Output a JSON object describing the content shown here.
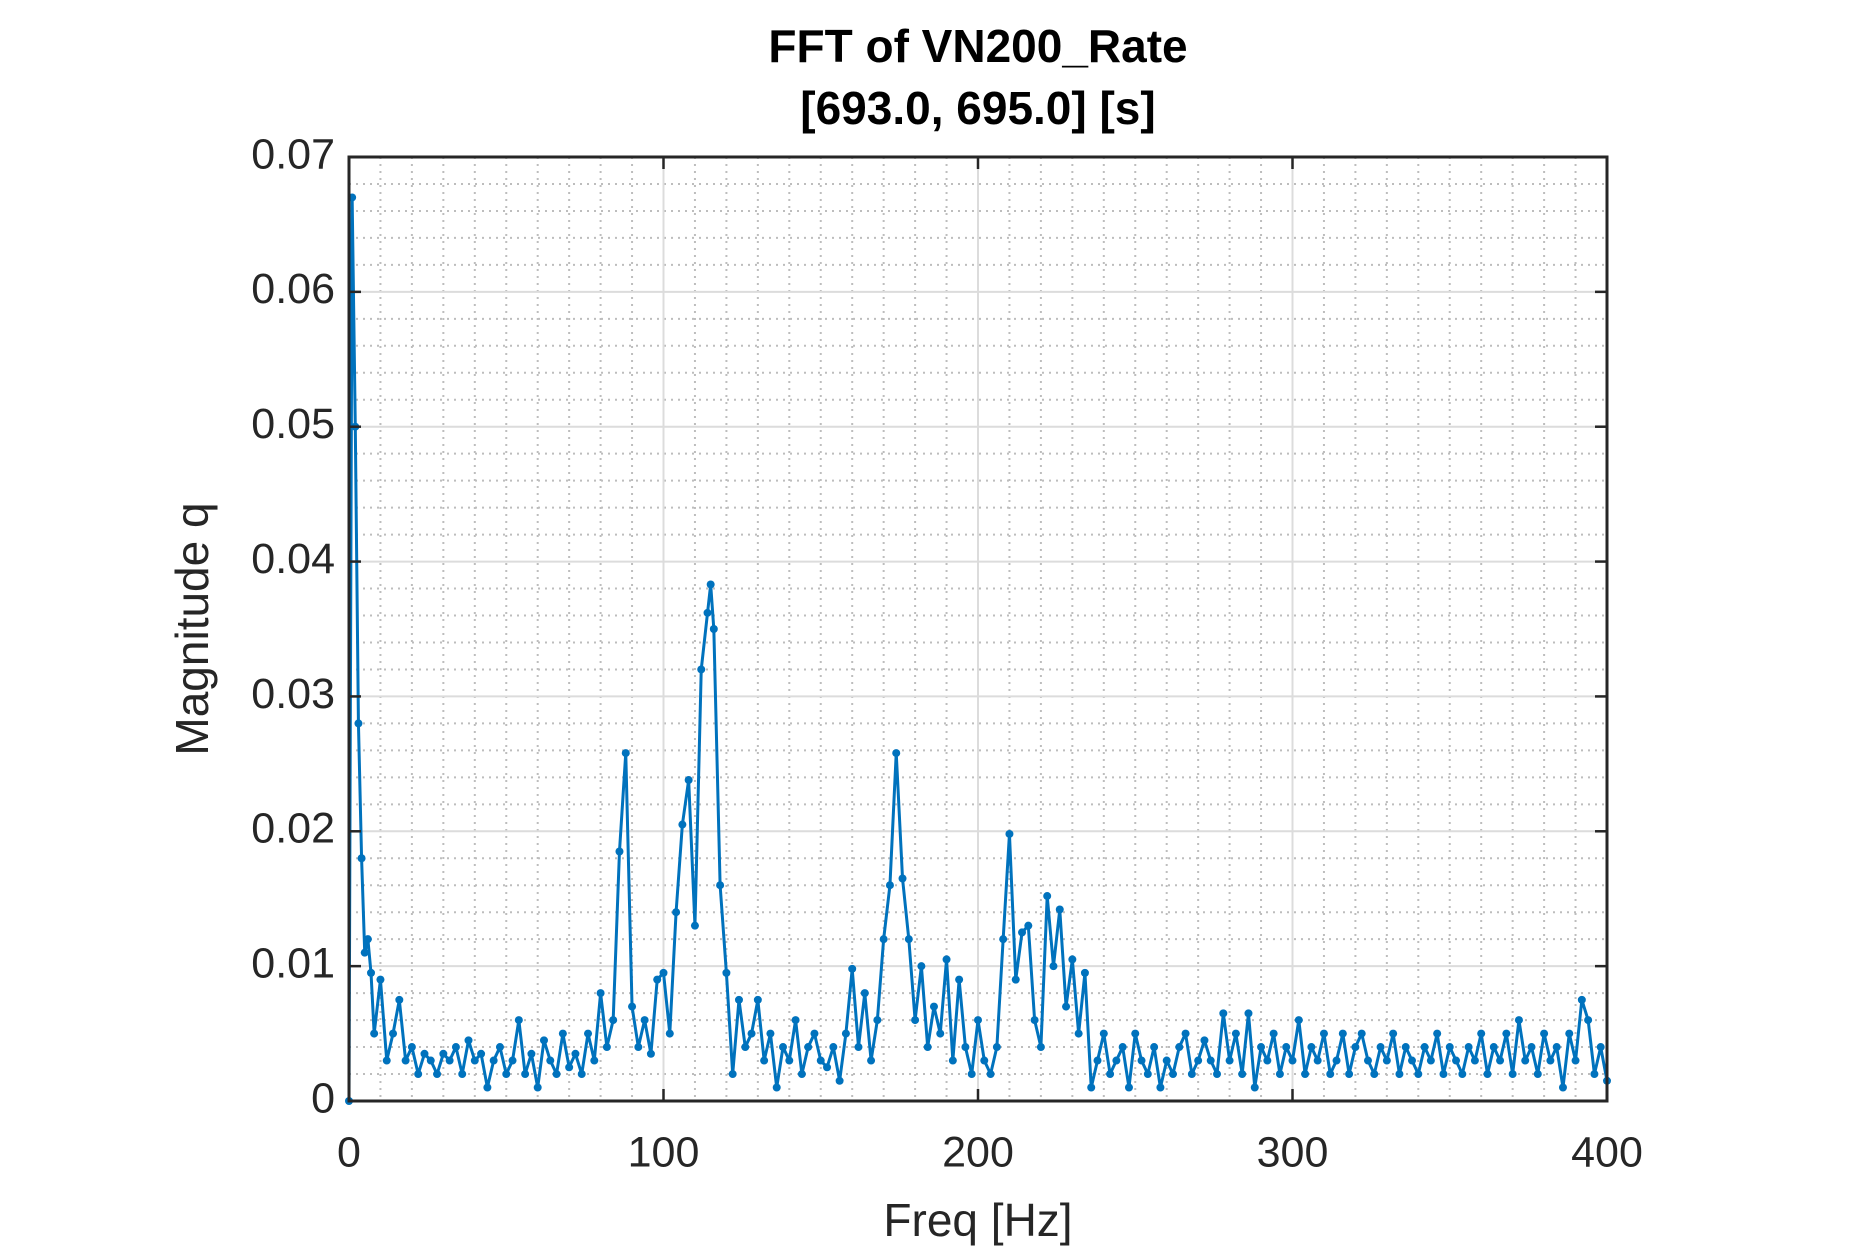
{
  "chart_data": {
    "type": "line",
    "title": "FFT of VN200_Rate",
    "subtitle": "[693.0, 695.0] [s]",
    "x_label": "Freq [Hz]",
    "y_label": "Magnitude q",
    "xlim": [
      0,
      400
    ],
    "xticks": [
      0,
      100,
      200,
      300,
      400
    ],
    "ylim": [
      0,
      0.07
    ],
    "yticks": [
      0,
      0.01,
      0.02,
      0.03,
      0.04,
      0.05,
      0.06,
      0.07
    ],
    "grid": true,
    "minor_grid": true,
    "markers": true,
    "x": [
      0,
      1,
      2,
      3,
      4,
      5,
      6,
      7,
      8,
      10,
      12,
      14,
      16,
      18,
      20,
      22,
      24,
      26,
      28,
      30,
      32,
      34,
      36,
      38,
      40,
      42,
      44,
      46,
      48,
      50,
      52,
      54,
      56,
      58,
      60,
      62,
      64,
      66,
      68,
      70,
      72,
      74,
      76,
      78,
      80,
      82,
      84,
      86,
      88,
      90,
      92,
      94,
      96,
      98,
      100,
      102,
      104,
      106,
      108,
      110,
      112,
      114,
      115,
      116,
      118,
      120,
      122,
      124,
      126,
      128,
      130,
      132,
      134,
      136,
      138,
      140,
      142,
      144,
      146,
      148,
      150,
      152,
      154,
      156,
      158,
      160,
      162,
      164,
      166,
      168,
      170,
      172,
      174,
      176,
      178,
      180,
      182,
      184,
      186,
      188,
      190,
      192,
      194,
      196,
      198,
      200,
      202,
      204,
      206,
      208,
      210,
      212,
      214,
      216,
      218,
      220,
      222,
      224,
      226,
      228,
      230,
      232,
      234,
      236,
      238,
      240,
      242,
      244,
      246,
      248,
      250,
      252,
      254,
      256,
      258,
      260,
      262,
      264,
      266,
      268,
      270,
      272,
      274,
      276,
      278,
      280,
      282,
      284,
      286,
      288,
      290,
      292,
      294,
      296,
      298,
      300,
      302,
      304,
      306,
      308,
      310,
      312,
      314,
      316,
      318,
      320,
      322,
      324,
      326,
      328,
      330,
      332,
      334,
      336,
      338,
      340,
      342,
      344,
      346,
      348,
      350,
      352,
      354,
      356,
      358,
      360,
      362,
      364,
      366,
      368,
      370,
      372,
      374,
      376,
      378,
      380,
      382,
      384,
      386,
      388,
      390,
      392,
      394,
      396,
      398,
      400
    ],
    "series": [
      {
        "color": "#0072BD",
        "values": [
          0,
          0.067,
          0.05,
          0.028,
          0.018,
          0.011,
          0.012,
          0.0095,
          0.005,
          0.009,
          0.003,
          0.005,
          0.0075,
          0.003,
          0.004,
          0.002,
          0.0035,
          0.003,
          0.002,
          0.0035,
          0.003,
          0.004,
          0.002,
          0.0045,
          0.003,
          0.0035,
          0.001,
          0.003,
          0.004,
          0.002,
          0.003,
          0.006,
          0.002,
          0.0035,
          0.001,
          0.0045,
          0.003,
          0.002,
          0.005,
          0.0025,
          0.0035,
          0.002,
          0.005,
          0.003,
          0.008,
          0.004,
          0.006,
          0.0185,
          0.0258,
          0.007,
          0.004,
          0.006,
          0.0035,
          0.009,
          0.0095,
          0.005,
          0.014,
          0.0205,
          0.0238,
          0.013,
          0.032,
          0.0362,
          0.0383,
          0.035,
          0.016,
          0.0095,
          0.002,
          0.0075,
          0.004,
          0.005,
          0.0075,
          0.003,
          0.005,
          0.001,
          0.004,
          0.003,
          0.006,
          0.002,
          0.004,
          0.005,
          0.003,
          0.0025,
          0.004,
          0.0015,
          0.005,
          0.0098,
          0.004,
          0.008,
          0.003,
          0.006,
          0.012,
          0.016,
          0.0258,
          0.0165,
          0.012,
          0.006,
          0.01,
          0.004,
          0.007,
          0.005,
          0.0105,
          0.003,
          0.009,
          0.004,
          0.002,
          0.006,
          0.003,
          0.002,
          0.004,
          0.012,
          0.0198,
          0.009,
          0.0125,
          0.013,
          0.006,
          0.004,
          0.0152,
          0.01,
          0.0142,
          0.007,
          0.0105,
          0.005,
          0.0095,
          0.001,
          0.003,
          0.005,
          0.002,
          0.003,
          0.004,
          0.001,
          0.005,
          0.003,
          0.002,
          0.004,
          0.001,
          0.003,
          0.002,
          0.004,
          0.005,
          0.002,
          0.003,
          0.0045,
          0.003,
          0.002,
          0.0065,
          0.003,
          0.005,
          0.002,
          0.0065,
          0.001,
          0.004,
          0.003,
          0.005,
          0.002,
          0.004,
          0.003,
          0.006,
          0.002,
          0.004,
          0.003,
          0.005,
          0.002,
          0.003,
          0.005,
          0.002,
          0.004,
          0.005,
          0.003,
          0.002,
          0.004,
          0.003,
          0.005,
          0.002,
          0.004,
          0.003,
          0.002,
          0.004,
          0.003,
          0.005,
          0.002,
          0.004,
          0.003,
          0.002,
          0.004,
          0.003,
          0.005,
          0.002,
          0.004,
          0.003,
          0.005,
          0.002,
          0.006,
          0.003,
          0.004,
          0.002,
          0.005,
          0.003,
          0.004,
          0.001,
          0.005,
          0.003,
          0.0075,
          0.006,
          0.002,
          0.004,
          0.0015
        ]
      }
    ]
  }
}
